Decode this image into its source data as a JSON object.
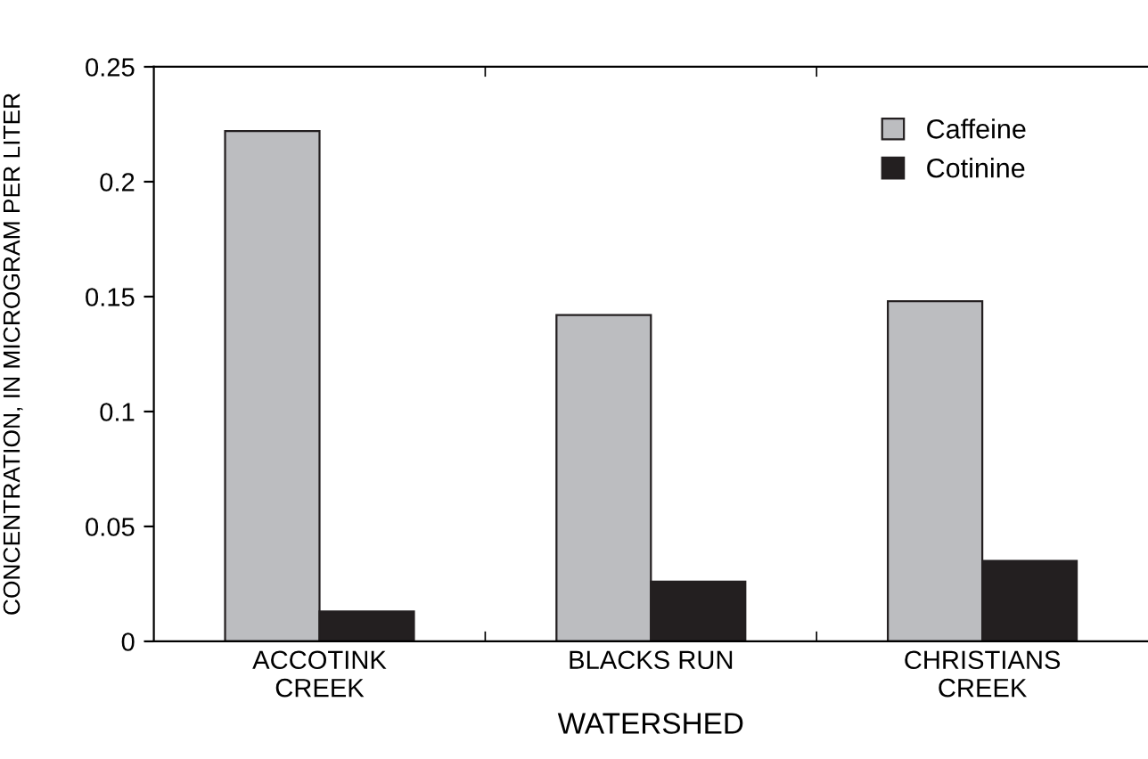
{
  "chart_data": {
    "type": "bar",
    "xlabel": "WATERSHED",
    "ylabel": "CONCENTRATION, IN MICROGRAM PER LITER",
    "categories": [
      "ACCOTINK\nCREEK",
      "BLACKS RUN",
      "CHRISTIANS\nCREEK"
    ],
    "series": [
      {
        "name": "Caffeine",
        "color": "#bcbdc0",
        "values": [
          0.222,
          0.142,
          0.148
        ]
      },
      {
        "name": "Cotinine",
        "color": "#231f20",
        "values": [
          0.013,
          0.026,
          0.035
        ]
      }
    ],
    "ylim": [
      0,
      0.25
    ],
    "yticks": [
      {
        "value": 0,
        "label": "0"
      },
      0.05,
      0.1,
      0.15,
      0.2,
      0.25
    ],
    "grid": false,
    "legend": "top right"
  }
}
